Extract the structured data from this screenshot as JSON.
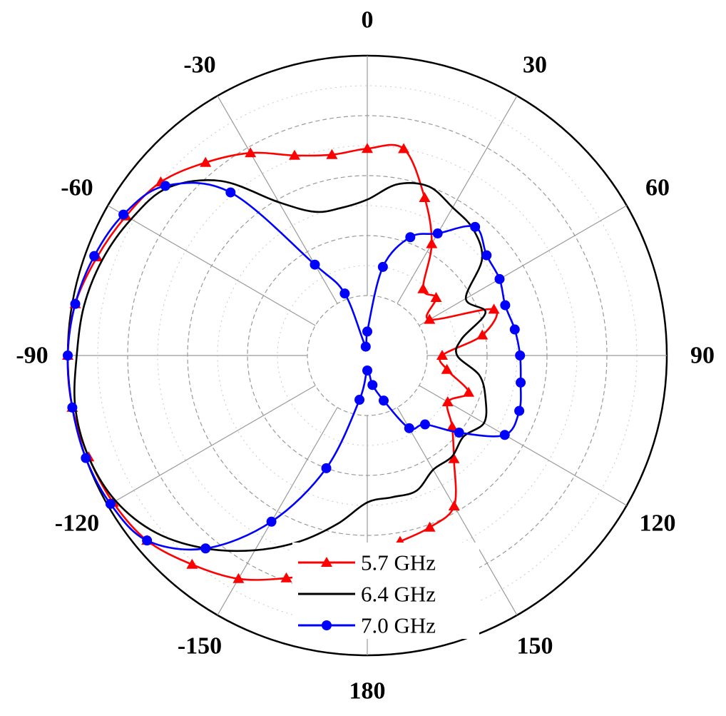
{
  "chart_data": {
    "type": "polar-line",
    "angle_labels": [
      "0",
      "30",
      "60",
      "90",
      "120",
      "150",
      "180",
      "-150",
      "-120",
      "-90",
      "-60",
      "-30"
    ],
    "angle_label_values": [
      0,
      30,
      60,
      90,
      120,
      150,
      180,
      -150,
      -120,
      -90,
      -60,
      -30
    ],
    "radial_range": [
      0,
      1
    ],
    "radial_grid": [
      0.2,
      0.4,
      0.6,
      0.8
    ],
    "angular_grid_step": 30,
    "grid": true,
    "legend_position": "bottom-center",
    "series": [
      {
        "name": "5.7 GHz",
        "color": "#ff0000",
        "marker": "triangle",
        "theta": [
          -180,
          -170,
          -160,
          -150,
          -140,
          -130,
          -120,
          -110,
          -100,
          -90,
          -80,
          -70,
          -60,
          -50,
          -40,
          -30,
          -20,
          -10,
          0,
          10,
          20,
          30,
          40,
          50,
          60,
          70,
          80,
          90,
          100,
          110,
          120,
          130,
          140,
          150,
          160,
          170
        ],
        "r": [
          0.67,
          0.73,
          0.79,
          0.86,
          0.91,
          0.96,
          0.98,
          0.99,
          1.0,
          1.0,
          0.99,
          0.96,
          0.93,
          0.9,
          0.84,
          0.78,
          0.71,
          0.68,
          0.69,
          0.7,
          0.56,
          0.43,
          0.29,
          0.3,
          0.24,
          0.45,
          0.39,
          0.25,
          0.27,
          0.36,
          0.31,
          0.37,
          0.45,
          0.58,
          0.61,
          0.63
        ]
      },
      {
        "name": "6.4 GHz",
        "color": "#000000",
        "marker": "none",
        "theta": [
          -180,
          -170,
          -160,
          -150,
          -140,
          -130,
          -120,
          -110,
          -100,
          -90,
          -80,
          -70,
          -60,
          -50,
          -40,
          -30,
          -20,
          -10,
          0,
          10,
          20,
          30,
          40,
          50,
          60,
          70,
          80,
          90,
          100,
          110,
          120,
          130,
          140,
          150,
          160,
          170
        ],
        "r": [
          0.49,
          0.57,
          0.66,
          0.75,
          0.84,
          0.92,
          0.97,
          0.99,
          0.99,
          0.97,
          0.96,
          0.94,
          0.91,
          0.87,
          0.76,
          0.59,
          0.51,
          0.5,
          0.52,
          0.58,
          0.6,
          0.57,
          0.55,
          0.5,
          0.38,
          0.42,
          0.32,
          0.3,
          0.38,
          0.42,
          0.45,
          0.42,
          0.44,
          0.44,
          0.48,
          0.48
        ]
      },
      {
        "name": "7.0 GHz",
        "color": "#0000ff",
        "marker": "circle",
        "theta": [
          -180,
          -170,
          -160,
          -150,
          -140,
          -130,
          -120,
          -110,
          -100,
          -90,
          -80,
          -70,
          -60,
          -50,
          -40,
          -30,
          -20,
          -10,
          0,
          10,
          20,
          30,
          40,
          50,
          60,
          70,
          80,
          90,
          100,
          110,
          120,
          130,
          140,
          150,
          160,
          170
        ],
        "r": [
          0.05,
          0.15,
          0.4,
          0.64,
          0.84,
          0.96,
          0.99,
          1.0,
          1.0,
          1.0,
          0.99,
          0.97,
          0.94,
          0.88,
          0.71,
          0.35,
          0.22,
          0.03,
          0.08,
          0.3,
          0.42,
          0.47,
          0.56,
          0.52,
          0.51,
          0.49,
          0.5,
          0.51,
          0.52,
          0.54,
          0.53,
          0.4,
          0.3,
          0.28,
          0.16,
          0.1
        ]
      }
    ]
  }
}
